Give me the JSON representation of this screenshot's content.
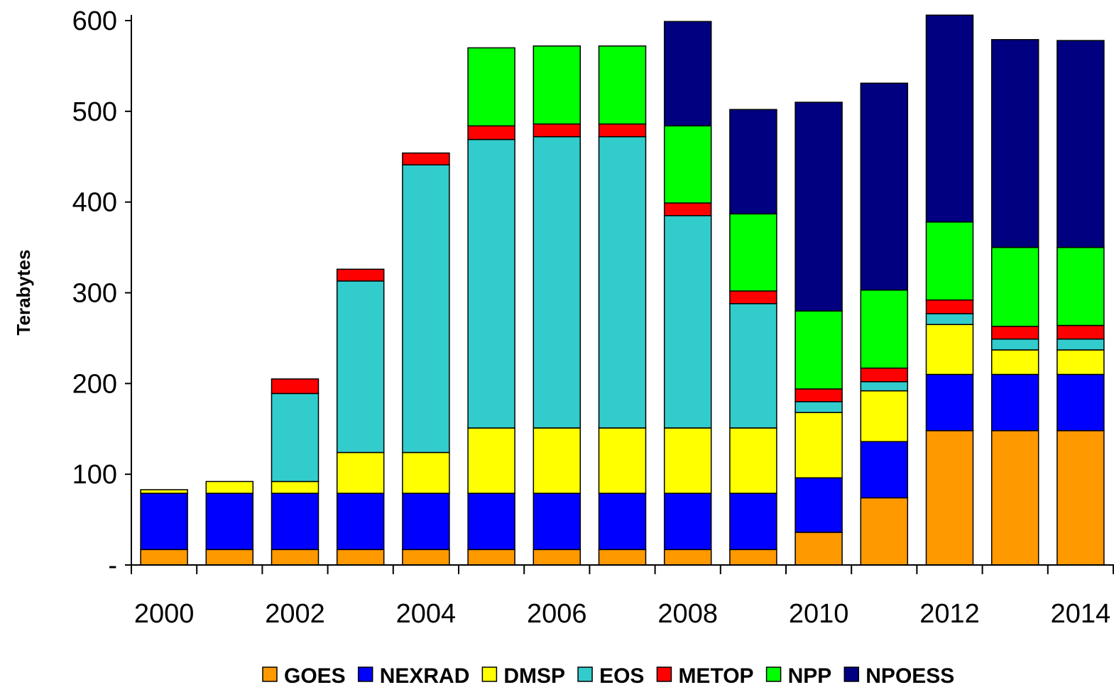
{
  "chart_data": {
    "type": "bar",
    "stacked": true,
    "title": "",
    "xlabel": "",
    "ylabel": "Terabytes",
    "ylim": [
      0,
      600
    ],
    "y_ticks": [
      0,
      100,
      200,
      300,
      400,
      500,
      600
    ],
    "y_tick_labels": [
      "-",
      "100",
      "200",
      "300",
      "400",
      "500",
      "600"
    ],
    "categories": [
      "2000",
      "2001",
      "2002",
      "2003",
      "2004",
      "2005",
      "2006",
      "2007",
      "2008",
      "2009",
      "2010",
      "2011",
      "2012",
      "2013",
      "2014"
    ],
    "x_tick_labels": [
      "2000",
      "2002",
      "2004",
      "2006",
      "2008",
      "2010",
      "2012",
      "2014"
    ],
    "legend_position": "bottom",
    "grid": false,
    "series": [
      {
        "name": "GOES",
        "color": "#FF9900",
        "values": [
          17,
          17,
          17,
          17,
          17,
          17,
          17,
          17,
          17,
          17,
          36,
          74,
          148,
          148,
          148
        ]
      },
      {
        "name": "NEXRAD",
        "color": "#0000FF",
        "values": [
          62,
          62,
          62,
          62,
          62,
          62,
          62,
          62,
          62,
          62,
          60,
          62,
          62,
          62,
          62
        ]
      },
      {
        "name": "DMSP",
        "color": "#FFFF00",
        "values": [
          4,
          13,
          13,
          45,
          45,
          72,
          72,
          72,
          72,
          72,
          72,
          56,
          55,
          27,
          27
        ]
      },
      {
        "name": "EOS",
        "color": "#33CCCC",
        "values": [
          0,
          0,
          97,
          189,
          317,
          318,
          321,
          321,
          234,
          137,
          12,
          10,
          12,
          12,
          12
        ]
      },
      {
        "name": "METOP",
        "color": "#FF0000",
        "values": [
          0,
          0,
          16,
          13,
          13,
          15,
          14,
          14,
          14,
          14,
          14,
          15,
          15,
          14,
          15
        ]
      },
      {
        "name": "NPP",
        "color": "#00FF00",
        "values": [
          0,
          0,
          0,
          0,
          0,
          86,
          86,
          86,
          85,
          85,
          86,
          86,
          86,
          87,
          86
        ]
      },
      {
        "name": "NPOESS",
        "color": "#000080",
        "values": [
          0,
          0,
          0,
          0,
          0,
          0,
          0,
          0,
          115,
          115,
          230,
          228,
          228,
          229,
          228
        ]
      }
    ]
  }
}
